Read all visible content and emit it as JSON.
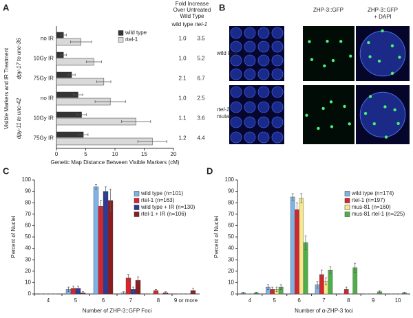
{
  "chart_data": [
    {
      "type": "bar",
      "orientation": "horizontal",
      "label": "A",
      "y_label": "Visible Markers and IR Treatment",
      "x_label": "Genetic Map Distance Between Visible Markers (cM)",
      "category_groups": [
        {
          "name": "dpy-17 to unc-36",
          "categories": [
            "no IR",
            "10Gy IR",
            "75Gy IR"
          ]
        },
        {
          "name": "dpy-11 to unc-42",
          "categories": [
            "no IR",
            "10Gy IR",
            "75Gy IR"
          ]
        }
      ],
      "series": [
        {
          "name": "wild type",
          "color": "#333333",
          "values": [
            1.2,
            1.2,
            2.6,
            3.7,
            4.3,
            4.6
          ],
          "errors": [
            0.5,
            0.5,
            0.6,
            0.8,
            0.8,
            0.8
          ]
        },
        {
          "name": "rtel-1",
          "color": "#d9d9d9",
          "values": [
            4.2,
            6.4,
            8.1,
            9.2,
            13.6,
            16.4
          ],
          "errors": [
            1.8,
            1.3,
            1.2,
            2.6,
            2.5,
            2.5
          ]
        }
      ],
      "xlim": [
        0,
        20
      ],
      "xticks": [
        0,
        5,
        10,
        15,
        20
      ],
      "legend": "upper right",
      "fold_increase": {
        "title_lines": [
          "Fold Increase",
          "Over Untreated",
          "Wild Type"
        ],
        "columns": [
          "wild type",
          "rtel-1"
        ],
        "rows": [
          [
            "1.0",
            "3.5"
          ],
          [
            "1.0",
            "5.2"
          ],
          [
            "2.1",
            "6.7"
          ],
          [
            "1.0",
            "2.5"
          ],
          [
            "1.1",
            "3.6"
          ],
          [
            "1.2",
            "4.4"
          ]
        ]
      }
    },
    {
      "type": "bar",
      "label": "C",
      "y_label": "Percent of Nuclei",
      "x_label": "Number of ZHP-3::GFP Foci",
      "categories": [
        "4",
        "5",
        "6",
        "7",
        "8",
        "9 or more"
      ],
      "series": [
        {
          "name": "wild type (n=101)",
          "color": "#7fb2e5",
          "values": [
            0,
            4,
            94,
            1,
            0,
            0
          ],
          "errors": [
            0,
            2,
            2,
            1,
            0,
            0
          ]
        },
        {
          "name": "rtel-1 (n=163)",
          "color": "#d7262b",
          "values": [
            0,
            5,
            77,
            14,
            3,
            0
          ],
          "errors": [
            0,
            2,
            5,
            3,
            1,
            0
          ]
        },
        {
          "name": "wild type + IR (n=130)",
          "color": "#2b3c96",
          "values": [
            0,
            5,
            90,
            4,
            0,
            0
          ],
          "errors": [
            0,
            2,
            4,
            2,
            0,
            0
          ]
        },
        {
          "name": "rtel-1 + IR (n=106)",
          "color": "#8c1c1f",
          "values": [
            0,
            1,
            82,
            12,
            1,
            3
          ],
          "errors": [
            0,
            1,
            10,
            3,
            1,
            2
          ]
        }
      ],
      "ylim": [
        0,
        100
      ],
      "yticks": [
        0,
        10,
        20,
        30,
        40,
        50,
        60,
        70,
        80,
        90,
        100
      ],
      "legend": "upper right"
    },
    {
      "type": "bar",
      "label": "D",
      "y_label": "Percent of Nuclei",
      "x_label": "Number of α-ZHP-3 foci",
      "categories": [
        "4",
        "5",
        "6",
        "7",
        "8",
        "9",
        "10"
      ],
      "series": [
        {
          "name": "wild type (n=174)",
          "color": "#7fb2e5",
          "values": [
            1,
            6,
            85,
            8,
            0,
            0,
            0
          ],
          "errors": [
            0.5,
            2,
            3,
            3,
            0,
            0,
            0
          ]
        },
        {
          "name": "rtel-1 (n=197)",
          "color": "#d7262b",
          "values": [
            0,
            4,
            74,
            17,
            4,
            0,
            0
          ],
          "errors": [
            0,
            2,
            6,
            4,
            2,
            0,
            0
          ]
        },
        {
          "name": "mus-81 (n=160)",
          "color": "#f6e88e",
          "values": [
            0,
            4,
            84,
            11,
            0,
            0,
            0
          ],
          "errors": [
            0,
            2,
            4,
            3,
            0,
            0,
            0
          ]
        },
        {
          "name": "mus-81 rtel-1 (n=225)",
          "color": "#4fae4a",
          "values": [
            1,
            6,
            45,
            21,
            23,
            2,
            1
          ],
          "errors": [
            0.5,
            2,
            6,
            3,
            4,
            1,
            0.5
          ]
        }
      ],
      "ylim": [
        0,
        100
      ],
      "yticks": [
        0,
        10,
        20,
        30,
        40,
        50,
        60,
        70,
        80,
        90,
        100
      ],
      "legend": "upper right"
    }
  ],
  "panel_b": {
    "label": "B",
    "columns": [
      [
        "ZHP-3::GFP"
      ],
      [
        "ZHP-3::GFP",
        "+ DAPI"
      ]
    ],
    "rows": [
      [
        "wild type"
      ],
      [
        "rtel-1",
        "mutant"
      ]
    ]
  }
}
